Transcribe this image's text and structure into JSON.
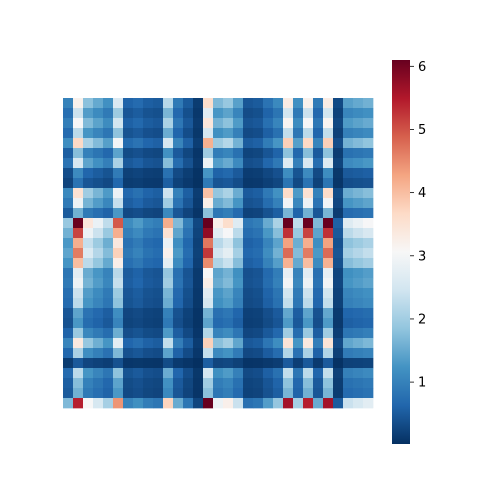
{
  "chart_data": {
    "type": "heatmap",
    "title": "",
    "xlabel": "",
    "ylabel": "",
    "n_rows": 31,
    "n_cols": 31,
    "colormap": "RdBu_r",
    "colormap_stops": [
      "#053061",
      "#2166ac",
      "#4393c3",
      "#92c5de",
      "#d1e5f0",
      "#f7f7f7",
      "#fddbc7",
      "#f4a582",
      "#d6604d",
      "#b2182b",
      "#67001f"
    ],
    "vmin": 0.02,
    "vmax": 6.1,
    "row_factor": [
      1.0,
      0.75,
      0.95,
      0.7,
      1.15,
      0.55,
      0.8,
      0.35,
      0.25,
      1.1,
      0.9,
      0.5,
      1.9,
      1.6,
      1.3,
      1.45,
      1.25,
      0.85,
      0.9,
      0.75,
      0.7,
      0.45,
      0.4,
      0.6,
      1.05,
      0.65,
      0.15,
      0.7,
      0.55,
      0.5,
      1.7
    ],
    "col_factor": [
      1.0,
      3.2,
      1.8,
      1.5,
      1.2,
      2.6,
      0.6,
      0.7,
      0.55,
      0.5,
      2.2,
      0.9,
      0.5,
      0.15,
      3.6,
      1.7,
      1.9,
      1.4,
      0.45,
      0.5,
      0.8,
      1.1,
      3.3,
      1.2,
      3.2,
      0.9,
      3.3,
      0.3,
      1.4,
      1.5,
      1.6
    ],
    "colorbar": {
      "ticks": [
        1,
        2,
        3,
        4,
        5,
        6
      ],
      "tick_labels": [
        "1",
        "2",
        "3",
        "4",
        "5",
        "6"
      ]
    }
  }
}
